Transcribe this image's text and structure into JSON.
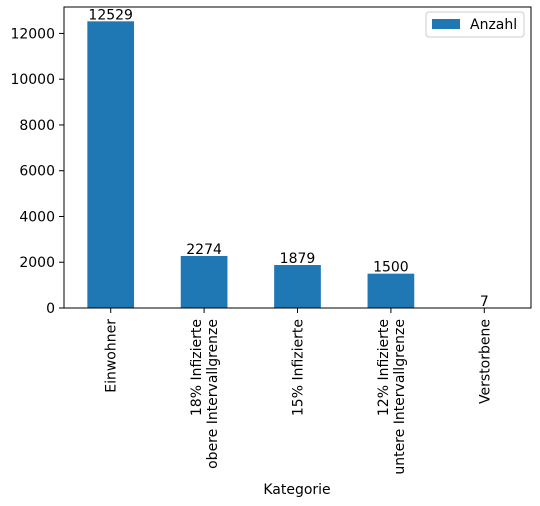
{
  "chart_data": {
    "type": "bar",
    "title": "",
    "xlabel": "Kategorie",
    "ylabel": "",
    "categories": [
      [
        "Einwohner"
      ],
      [
        "18% Infizierte",
        "obere Intervallgrenze"
      ],
      [
        "15% Infizierte"
      ],
      [
        "12% Infizierte",
        "untere Intervallgrenze"
      ],
      [
        "Verstorbene"
      ]
    ],
    "series": [
      {
        "name": "Anzahl",
        "values": [
          12529,
          2274,
          1879,
          1500,
          7
        ],
        "color": "#1f77b4"
      }
    ],
    "data_labels": [
      "12529",
      "2274",
      "1879",
      "1500",
      "7"
    ],
    "yticks": [
      0,
      2000,
      4000,
      6000,
      8000,
      10000,
      12000
    ],
    "ylim": [
      0,
      13155
    ],
    "grid": false,
    "legend_position": "top-right"
  }
}
